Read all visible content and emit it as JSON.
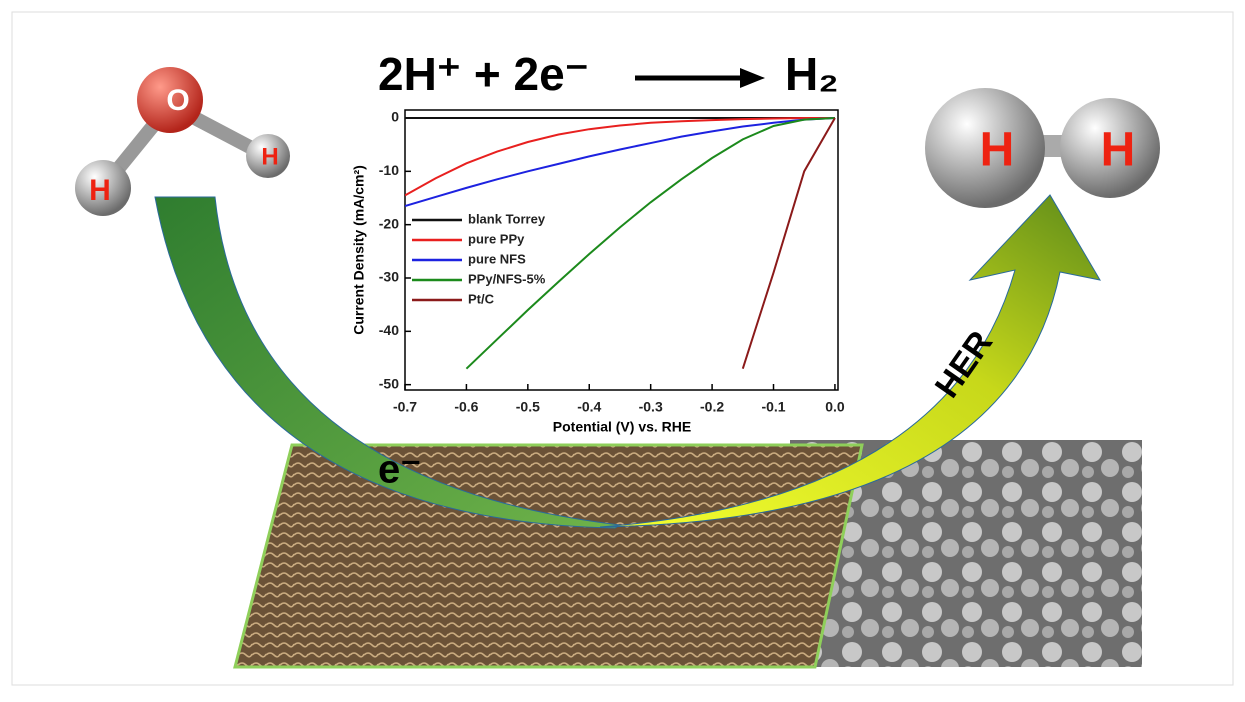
{
  "equation": {
    "left": "2H⁺ + 2e⁻",
    "right": "H₂"
  },
  "molecules": {
    "water": [
      "O",
      "H",
      "H"
    ],
    "hydrogen": [
      "H",
      "H"
    ]
  },
  "arrows": {
    "electron": "e⁻",
    "reaction": "HER"
  },
  "chart_data": {
    "type": "line",
    "xlabel": "Potential (V) vs. RHE",
    "ylabel": "Current Density (mA/cm²)",
    "x": [
      -0.7,
      -0.65,
      -0.6,
      -0.55,
      -0.5,
      -0.45,
      -0.4,
      -0.35,
      -0.3,
      -0.25,
      -0.2,
      -0.15,
      -0.1,
      -0.05,
      0
    ],
    "series": [
      {
        "name": "blank Torrey",
        "color": "#111111",
        "values": [
          0,
          0,
          0,
          0,
          0,
          0,
          0,
          0,
          0,
          0,
          0,
          0,
          0,
          0,
          0
        ]
      },
      {
        "name": "pure PPy",
        "color": "#e8201f",
        "values": [
          -14.5,
          -11.3,
          -8.5,
          -6.3,
          -4.5,
          -3.1,
          -2.1,
          -1.4,
          -0.9,
          -0.6,
          -0.4,
          -0.2,
          -0.1,
          0,
          0
        ]
      },
      {
        "name": "pure NFS",
        "color": "#1d22e0",
        "values": [
          -16.5,
          -14.8,
          -13.1,
          -11.5,
          -10,
          -8.6,
          -7.2,
          -5.9,
          -4.7,
          -3.5,
          -2.5,
          -1.6,
          -0.9,
          -0.3,
          0
        ]
      },
      {
        "name": "PPy/NFS-5%",
        "color": "#1c8a1c",
        "values": [
          null,
          null,
          -47,
          -41.5,
          -36,
          -30.7,
          -25.5,
          -20.5,
          -15.8,
          -11.5,
          -7.5,
          -4,
          -1.5,
          -0.3,
          0
        ]
      },
      {
        "name": "Pt/C",
        "color": "#8b1a1a",
        "values": [
          null,
          null,
          null,
          null,
          null,
          null,
          null,
          null,
          null,
          null,
          null,
          -47,
          -29,
          -10,
          0
        ]
      }
    ],
    "xlim": [
      -0.7,
      0.005
    ],
    "ylim": [
      -51,
      1.5
    ],
    "xticks": [
      -0.7,
      -0.6,
      -0.5,
      -0.4,
      -0.3,
      -0.2,
      -0.1,
      {
        "value": 0,
        "label": "0.0"
      }
    ],
    "yticks": [
      0,
      -10,
      -20,
      -30,
      -40,
      -50
    ],
    "legend": "left"
  }
}
